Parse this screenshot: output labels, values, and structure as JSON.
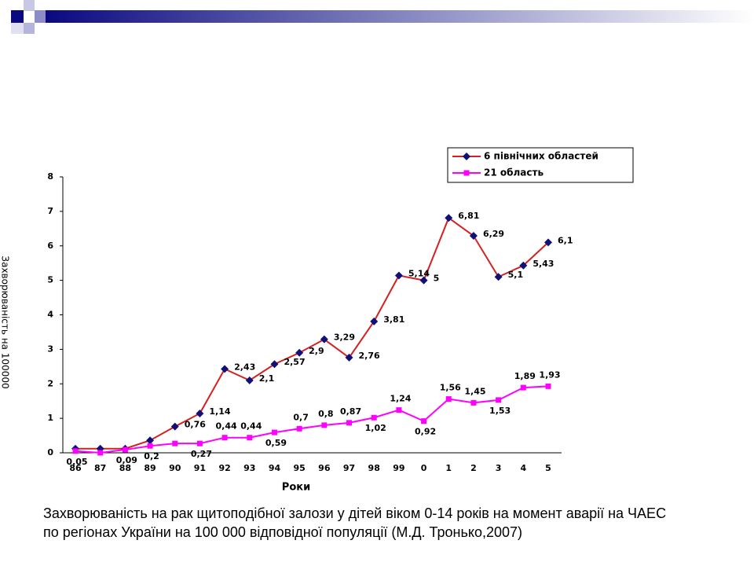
{
  "chart_data": {
    "type": "line",
    "caption": "Захворюваність на рак щитоподібної залози у дітей віком 0-14 років на момент аварії на ЧАЕС по регіонах України на 100 000 відповідної популяції (М.Д. Тронько,2007)",
    "y_label": "Захворюваність на 100000",
    "x_label": "Роки",
    "categories": [
      "86",
      "87",
      "88",
      "89",
      "90",
      "91",
      "92",
      "93",
      "94",
      "95",
      "96",
      "97",
      "98",
      "99",
      "0",
      "1",
      "2",
      "3",
      "4",
      "5"
    ],
    "series": [
      {
        "name": "6 північних областей",
        "color": "#d42020",
        "marker_color": "#10107a",
        "marker": "diamond",
        "values": [
          0.12,
          0.12,
          0.12,
          0.36,
          0.76,
          1.14,
          2.43,
          2.1,
          2.57,
          2.9,
          3.29,
          2.76,
          3.81,
          5.14,
          5,
          6.81,
          6.29,
          5.1,
          5.43,
          6.1
        ],
        "value_labels": [
          null,
          null,
          null,
          null,
          "0,76",
          "1,14",
          "2,43",
          "2,1",
          "2,57",
          "2,9",
          "3,29",
          "2,76",
          "3,81",
          "5,14",
          "5",
          "6,81",
          "6,29",
          "5,1",
          "5,43",
          "6,1"
        ]
      },
      {
        "name": "21 область",
        "color": "#ff00ff",
        "marker_color": "#ff00ff",
        "marker": "square",
        "values": [
          0.05,
          0,
          0.09,
          0.2,
          0.27,
          0.27,
          0.44,
          0.44,
          0.59,
          0.7,
          0.8,
          0.87,
          1.02,
          1.24,
          0.92,
          1.56,
          1.45,
          1.53,
          1.89,
          1.93
        ],
        "value_labels": [
          "0,05",
          null,
          "0,09",
          "0,2",
          null,
          "0,27",
          "0,44",
          "0,44",
          "0,59",
          "0,7",
          "0,8",
          "0,87",
          "1,02",
          "1,24",
          "0,92",
          "1,56",
          "1,45",
          "1,53",
          "1,89",
          "1,93"
        ]
      }
    ],
    "ylim": [
      0,
      8
    ],
    "yticks": [
      0,
      1,
      2,
      3,
      4,
      5,
      6,
      7,
      8
    ],
    "legend": "top-right"
  }
}
